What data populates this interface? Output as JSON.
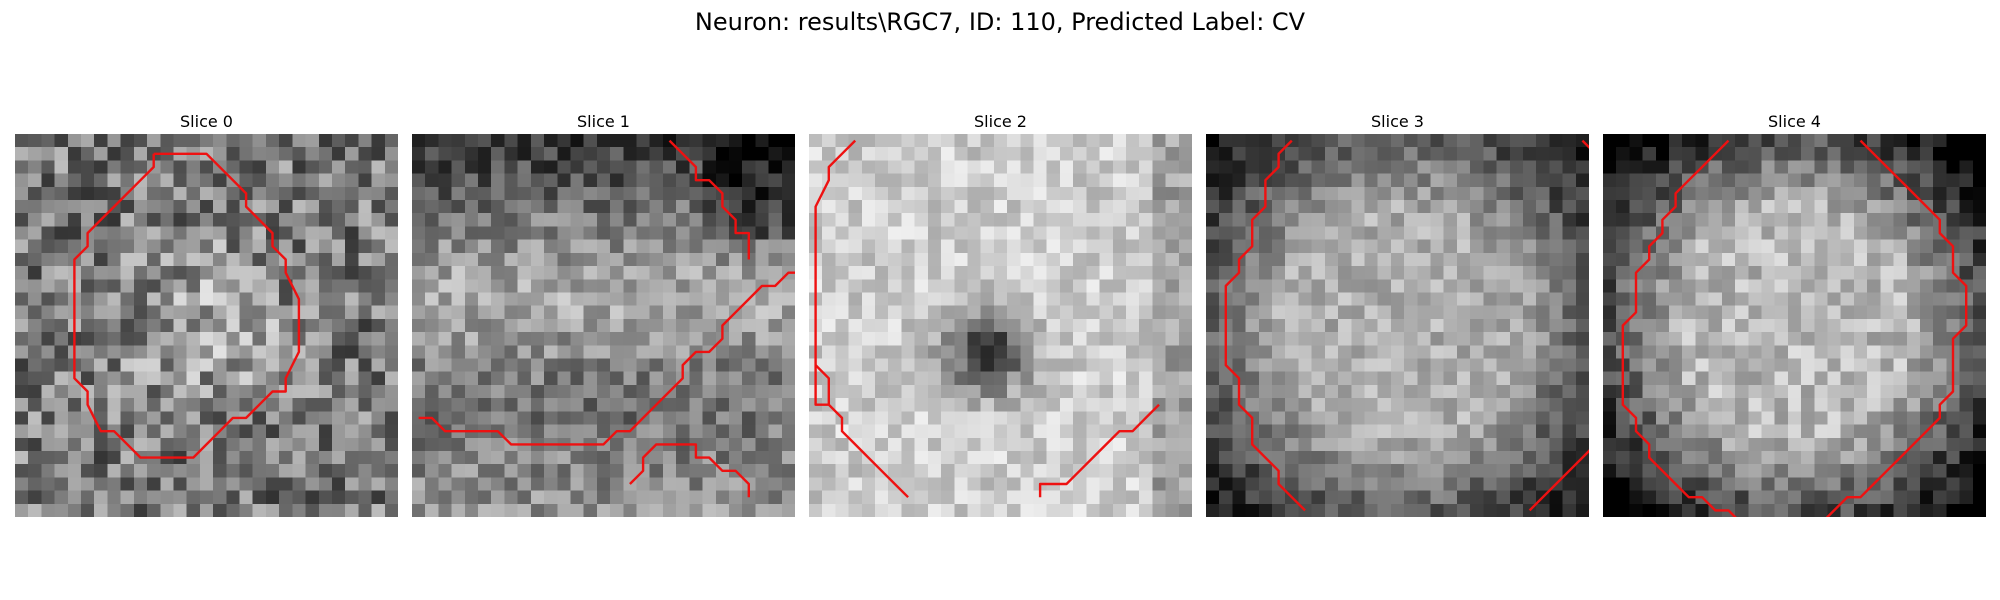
{
  "figure": {
    "title": "Neuron: results\\RGC7, ID: 110, Predicted Label: CV"
  },
  "panels": [
    {
      "title": "Slice 0",
      "image": {
        "pattern": "noisy-gray-center-bright",
        "base": 120,
        "contrast": 70,
        "center_boost": 55,
        "seed": 11
      },
      "contours": [
        [
          [
            10,
            1
          ],
          [
            14,
            1
          ],
          [
            17,
            4
          ],
          [
            17,
            5
          ],
          [
            19,
            7
          ],
          [
            19,
            8
          ],
          [
            20,
            9
          ],
          [
            20,
            10
          ],
          [
            21,
            12
          ],
          [
            21,
            16
          ],
          [
            20,
            18
          ],
          [
            20,
            19
          ],
          [
            19,
            19
          ],
          [
            18,
            20
          ],
          [
            17,
            21
          ],
          [
            16,
            21
          ],
          [
            15,
            22
          ],
          [
            14,
            23
          ],
          [
            13,
            24
          ],
          [
            9,
            24
          ],
          [
            7,
            22
          ],
          [
            6,
            22
          ],
          [
            5,
            20
          ],
          [
            5,
            19
          ],
          [
            4,
            18
          ],
          [
            4,
            9
          ],
          [
            5,
            8
          ],
          [
            5,
            7
          ],
          [
            6,
            6
          ],
          [
            7,
            5
          ],
          [
            8,
            4
          ],
          [
            9,
            3
          ],
          [
            10,
            2
          ],
          [
            10,
            1
          ]
        ]
      ]
    },
    {
      "title": "Slice 1",
      "image": {
        "pattern": "horizontal-band-dark-top",
        "base": 110,
        "contrast": 45,
        "band_boost": 60,
        "seed": 23
      },
      "contours": [
        [
          [
            19,
            0
          ],
          [
            20,
            1
          ],
          [
            21,
            2
          ],
          [
            21,
            3
          ],
          [
            22,
            3
          ],
          [
            23,
            4
          ],
          [
            23,
            5
          ],
          [
            24,
            6
          ],
          [
            24,
            7
          ],
          [
            25,
            7
          ],
          [
            25,
            9
          ]
        ],
        [
          [
            0,
            21
          ],
          [
            1,
            21
          ],
          [
            2,
            22
          ],
          [
            6,
            22
          ],
          [
            7,
            23
          ],
          [
            14,
            23
          ],
          [
            15,
            22
          ],
          [
            16,
            22
          ],
          [
            17,
            21
          ],
          [
            18,
            20
          ],
          [
            19,
            19
          ],
          [
            20,
            18
          ],
          [
            20,
            17
          ],
          [
            21,
            16
          ],
          [
            22,
            16
          ],
          [
            23,
            15
          ],
          [
            23,
            14
          ],
          [
            24,
            13
          ],
          [
            25,
            12
          ],
          [
            26,
            11
          ],
          [
            27,
            11
          ],
          [
            28,
            10
          ],
          [
            29,
            10
          ],
          [
            30,
            9
          ]
        ],
        [
          [
            16,
            26
          ],
          [
            17,
            25
          ],
          [
            17,
            24
          ],
          [
            18,
            23
          ],
          [
            20,
            23
          ],
          [
            21,
            23
          ],
          [
            21,
            24
          ],
          [
            22,
            24
          ],
          [
            23,
            25
          ],
          [
            24,
            25
          ],
          [
            25,
            26
          ],
          [
            25,
            27
          ]
        ]
      ]
    },
    {
      "title": "Slice 2",
      "image": {
        "pattern": "bright-with-dark-core",
        "base": 205,
        "contrast": 35,
        "core_dark": 150,
        "seed": 37
      },
      "contours": [
        [
          [
            3,
            0
          ],
          [
            2,
            1
          ],
          [
            1,
            2
          ],
          [
            1,
            3
          ],
          [
            0,
            5
          ],
          [
            0,
            20
          ],
          [
            1,
            20
          ]
        ],
        [
          [
            0,
            17
          ],
          [
            1,
            18
          ],
          [
            1,
            20
          ],
          [
            2,
            21
          ],
          [
            2,
            22
          ],
          [
            3,
            23
          ],
          [
            4,
            24
          ],
          [
            5,
            25
          ],
          [
            6,
            26
          ],
          [
            7,
            27
          ]
        ],
        [
          [
            17,
            27
          ],
          [
            17,
            26
          ],
          [
            19,
            26
          ],
          [
            20,
            25
          ],
          [
            21,
            24
          ],
          [
            22,
            23
          ],
          [
            23,
            22
          ],
          [
            24,
            22
          ],
          [
            25,
            21
          ],
          [
            26,
            20
          ]
        ]
      ]
    },
    {
      "title": "Slice 3",
      "image": {
        "pattern": "ring-dark-edges",
        "base": 175,
        "contrast": 35,
        "edge_dark": 85,
        "seed": 51
      },
      "contours": [
        [
          [
            6,
            0
          ],
          [
            5,
            1
          ],
          [
            5,
            2
          ],
          [
            4,
            3
          ],
          [
            4,
            5
          ],
          [
            3,
            6
          ],
          [
            3,
            8
          ],
          [
            2,
            9
          ],
          [
            2,
            10
          ],
          [
            1,
            11
          ],
          [
            1,
            17
          ],
          [
            2,
            18
          ],
          [
            2,
            20
          ],
          [
            3,
            21
          ],
          [
            3,
            23
          ],
          [
            4,
            24
          ],
          [
            5,
            25
          ],
          [
            5,
            26
          ],
          [
            6,
            27
          ],
          [
            7,
            28
          ]
        ],
        [
          [
            24,
            28
          ],
          [
            25,
            27
          ],
          [
            26,
            26
          ],
          [
            27,
            25
          ],
          [
            28,
            24
          ],
          [
            29,
            23
          ]
        ],
        [
          [
            28,
            0
          ],
          [
            29,
            1
          ]
        ]
      ]
    },
    {
      "title": "Slice 4",
      "image": {
        "pattern": "ring-dark-edges",
        "base": 185,
        "contrast": 40,
        "edge_dark": 110,
        "seed": 67
      },
      "contours": [
        [
          [
            9,
            0
          ],
          [
            8,
            1
          ],
          [
            7,
            2
          ],
          [
            6,
            3
          ],
          [
            5,
            4
          ],
          [
            5,
            5
          ],
          [
            4,
            6
          ],
          [
            4,
            7
          ],
          [
            3,
            8
          ],
          [
            3,
            9
          ],
          [
            2,
            10
          ],
          [
            2,
            13
          ],
          [
            1,
            14
          ],
          [
            1,
            20
          ],
          [
            2,
            21
          ],
          [
            2,
            22
          ],
          [
            3,
            23
          ],
          [
            3,
            24
          ],
          [
            4,
            25
          ],
          [
            5,
            26
          ],
          [
            6,
            27
          ],
          [
            7,
            27
          ],
          [
            8,
            28
          ],
          [
            9,
            28
          ],
          [
            10,
            29
          ],
          [
            16,
            29
          ],
          [
            17,
            28
          ],
          [
            18,
            27
          ],
          [
            19,
            27
          ],
          [
            20,
            26
          ],
          [
            21,
            25
          ],
          [
            22,
            24
          ],
          [
            23,
            23
          ],
          [
            24,
            22
          ],
          [
            25,
            21
          ],
          [
            25,
            20
          ],
          [
            26,
            19
          ],
          [
            26,
            15
          ],
          [
            27,
            14
          ],
          [
            27,
            11
          ],
          [
            26,
            10
          ],
          [
            26,
            8
          ],
          [
            25,
            7
          ],
          [
            25,
            6
          ],
          [
            24,
            5
          ],
          [
            23,
            4
          ],
          [
            22,
            3
          ],
          [
            21,
            2
          ],
          [
            20,
            1
          ],
          [
            19,
            0
          ]
        ]
      ]
    }
  ],
  "colors": {
    "contour": "#ee1111",
    "background": "#ffffff"
  }
}
